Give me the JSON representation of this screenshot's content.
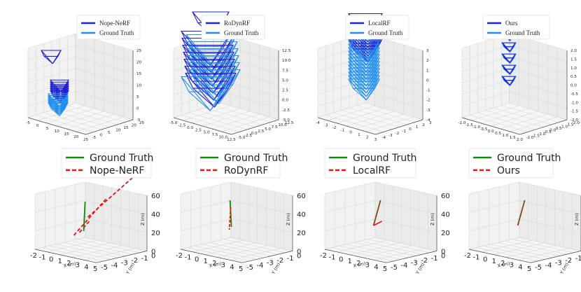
{
  "chart_data": [
    {
      "type": "3d-camera-trajectory",
      "method": "Nope-NeRF",
      "legend": [
        "Nope-NeRF",
        "Ground Truth"
      ],
      "x_ticks": [
        "-5",
        "0",
        "5",
        "10",
        "15",
        "20",
        "25"
      ],
      "y_ticks": [
        "-5",
        "0",
        "5",
        "10",
        "15",
        "20",
        "25"
      ],
      "z_ticks": [
        "25",
        "20",
        "15",
        "10",
        "5",
        "0",
        "-5"
      ]
    },
    {
      "type": "3d-camera-trajectory",
      "method": "RoDynRF",
      "legend": [
        "RoDynRF",
        "Ground Truth"
      ],
      "x_ticks": [
        "-5.0",
        "-2.5",
        "0.0",
        "2.5",
        "5.0",
        "7.5",
        "10.0",
        "12.5"
      ],
      "y_ticks": [
        "-5.0",
        "-2.5",
        "0.0",
        "2.5",
        "5.0",
        "7.5",
        "10.0",
        "12.5"
      ],
      "z_ticks": [
        "12.5",
        "10.0",
        "7.5",
        "5.0",
        "2.5",
        "0.0",
        "-2.5",
        "-5.0"
      ]
    },
    {
      "type": "3d-camera-trajectory",
      "method": "LocalRF",
      "legend": [
        "LocalRF",
        "Ground Truth"
      ],
      "x_ticks": [
        "-4",
        "-3",
        "-2",
        "-1",
        "0",
        "1",
        "2",
        "3"
      ],
      "y_ticks": [
        "-4",
        "-3",
        "-2",
        "-1",
        "0",
        "1",
        "2",
        "3"
      ],
      "z_ticks": [
        "3",
        "2",
        "1",
        "0",
        "-1",
        "-2",
        "-3",
        "-4"
      ]
    },
    {
      "type": "3d-camera-trajectory",
      "method": "Ours",
      "legend": [
        "Ours",
        "Ground Truth"
      ],
      "x_ticks": [
        "-2.0",
        "-1.5",
        "-1.0",
        "-0.5",
        "0.0",
        "0.5",
        "1.0",
        "1.5",
        "2.0"
      ],
      "y_ticks": [
        "-2.0",
        "-1.5",
        "-1.0",
        "-0.5",
        "0.0",
        "0.5",
        "1.0",
        "1.5",
        "2.0"
      ],
      "z_ticks": [
        "2.0",
        "1.5",
        "1.0",
        "0.5",
        "0.0",
        "-0.5",
        "-1.0",
        "-1.5",
        "-2.0"
      ]
    },
    {
      "type": "3d-line",
      "method": "Nope-NeRF",
      "legend": [
        "Ground Truth",
        "Nope-NeRF"
      ],
      "x_ticks": [
        "-2",
        "-1",
        "0",
        "1",
        "2",
        "3",
        "4",
        "5"
      ],
      "y_ticks": [
        "-5",
        "-4",
        "-3",
        "-2",
        "-1",
        "0"
      ],
      "z_ticks": [
        "60",
        "40",
        "20",
        "0"
      ],
      "xlabel": "X (m)",
      "ylabel": "Y (m)",
      "zlabel": "Z (m)"
    },
    {
      "type": "3d-line",
      "method": "RoDynRF",
      "legend": [
        "Ground Truth",
        "RoDynRF"
      ],
      "x_ticks": [
        "-2",
        "-1",
        "0",
        "1",
        "2",
        "3",
        "4",
        "5"
      ],
      "y_ticks": [
        "-5",
        "-4",
        "-3",
        "-2",
        "-1",
        "0"
      ],
      "z_ticks": [
        "60",
        "40",
        "20",
        "0"
      ],
      "xlabel": "X (m)",
      "ylabel": "Y (m)",
      "zlabel": "Z (m)"
    },
    {
      "type": "3d-line",
      "method": "LocalRF",
      "legend": [
        "Ground Truth",
        "LocalRF"
      ],
      "x_ticks": [
        "-2",
        "-1",
        "0",
        "1",
        "2",
        "3",
        "4",
        "5"
      ],
      "y_ticks": [
        "-5",
        "-4",
        "-3",
        "-2",
        "-1",
        "0"
      ],
      "z_ticks": [
        "60",
        "40",
        "20",
        "0"
      ],
      "xlabel": "X (m)",
      "ylabel": "Y (m)",
      "zlabel": "Z (m)"
    },
    {
      "type": "3d-line",
      "method": "Ours",
      "legend": [
        "Ground Truth",
        "Ours"
      ],
      "x_ticks": [
        "-2",
        "-1",
        "0",
        "1",
        "2",
        "3",
        "4",
        "5"
      ],
      "y_ticks": [
        "-5",
        "-4",
        "-3",
        "-2",
        "-1",
        "0"
      ],
      "z_ticks": [
        "60",
        "40",
        "20",
        "0"
      ],
      "xlabel": "X (m)",
      "ylabel": "Y (m)",
      "zlabel": "Z (m)"
    }
  ],
  "colors": {
    "pred_camera": "#2020d0",
    "gt_camera": "#1f8ff0",
    "gt_line": "#118811",
    "pred_line": "#ee1111",
    "grid": "#d6d6d6",
    "pane": "#f2f2f2"
  }
}
